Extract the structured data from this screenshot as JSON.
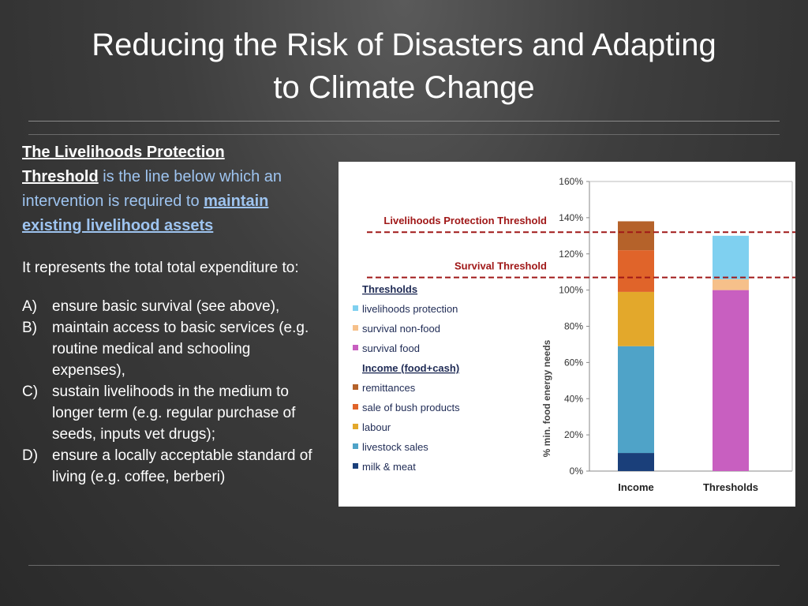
{
  "slide": {
    "title_line1": "Reducing the Risk of Disasters and Adapting",
    "title_line2": "to Climate Change"
  },
  "left": {
    "def_bold_1": "The Livelihoods Protection",
    "def_bold_2": "Threshold",
    "def_text": " is the line below which an intervention is required to ",
    "def_link": "maintain existing livelihood assets",
    "para": "It represents the total total expenditure to:",
    "items": [
      {
        "key": "A)",
        "text": "ensure basic survival (see above),"
      },
      {
        "key": "B)",
        "text": "maintain access to basic services (e.g. routine medical and schooling expenses),"
      },
      {
        "key": "C)",
        "text": "sustain livelihoods in the medium to longer term (e.g. regular purchase of  seeds, inputs vet drugs);"
      },
      {
        "key": "D)",
        "text": "ensure a locally acceptable standard of living (e.g. coffee, berberi)"
      }
    ]
  },
  "colors": {
    "milk_meat": "#1a3f7a",
    "livestock": "#4fa3c8",
    "labour": "#e3a82b",
    "bush": "#e0642a",
    "remittances": "#b5622a",
    "survival_food": "#c85fc0",
    "survival_nonfood": "#f6c08a",
    "livelihoods_protection": "#7fd0f0",
    "threshold_line": "#a01818"
  },
  "chart_data": {
    "type": "bar",
    "stacked": true,
    "categories": [
      "Income",
      "Thresholds"
    ],
    "ylabel": "% min. food energy needs",
    "ylim": [
      0,
      160
    ],
    "yticks": [
      "0%",
      "20%",
      "40%",
      "60%",
      "80%",
      "100%",
      "120%",
      "140%",
      "160%"
    ],
    "series": [
      {
        "name": "milk & meat",
        "group": "Income (food+cash)",
        "color": "#1a3f7a",
        "values": [
          10,
          0
        ]
      },
      {
        "name": "livestock sales",
        "group": "Income (food+cash)",
        "color": "#4fa3c8",
        "values": [
          59,
          0
        ]
      },
      {
        "name": "labour",
        "group": "Income (food+cash)",
        "color": "#e3a82b",
        "values": [
          30,
          0
        ]
      },
      {
        "name": "sale of bush products",
        "group": "Income (food+cash)",
        "color": "#e0642a",
        "values": [
          23,
          0
        ]
      },
      {
        "name": "remittances",
        "group": "Income (food+cash)",
        "color": "#b5622a",
        "values": [
          16,
          0
        ]
      },
      {
        "name": "survival food",
        "group": "Thresholds",
        "color": "#c85fc0",
        "values": [
          0,
          100
        ]
      },
      {
        "name": "survival non-food",
        "group": "Thresholds",
        "color": "#f6c08a",
        "values": [
          0,
          6
        ]
      },
      {
        "name": "livelihoods protection",
        "group": "Thresholds",
        "color": "#7fd0f0",
        "values": [
          0,
          24
        ]
      }
    ],
    "threshold_lines": [
      {
        "label": "Livelihoods Protection Threshold",
        "value": 132
      },
      {
        "label": "Survival Threshold",
        "value": 107
      }
    ],
    "legend": {
      "thresholds_heading": "Thresholds",
      "thresholds_items": [
        "livelihoods protection",
        "survival non-food",
        "survival food"
      ],
      "income_heading": "Income (food+cash)",
      "income_items": [
        "remittances",
        "sale of bush products",
        "labour",
        "livestock sales",
        "milk & meat"
      ],
      "placement": "left"
    }
  }
}
